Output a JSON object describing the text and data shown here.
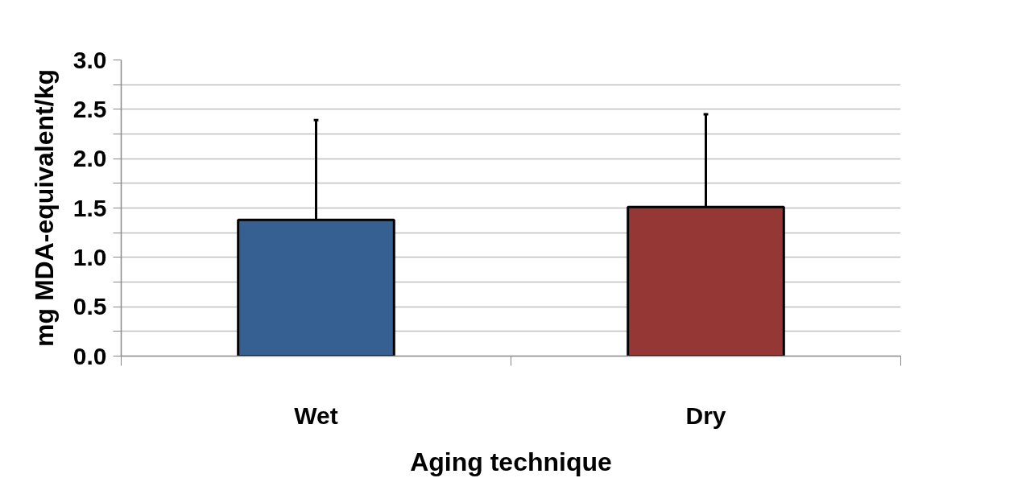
{
  "chart_data": {
    "type": "bar",
    "xlabel": "Aging technique",
    "ylabel": "mg MDA-equivalent/kg",
    "categories": [
      "Wet",
      "Dry"
    ],
    "values": [
      1.38,
      1.51
    ],
    "colors": [
      "#376092",
      "#953735"
    ],
    "errors": [
      [
        1.38,
        2.39
      ],
      [
        1.51,
        2.45
      ]
    ],
    "ylim": [
      0,
      3.0
    ],
    "yticks": [
      {
        "value": 0,
        "label": "0.0"
      },
      {
        "value": 0.25,
        "label": null
      },
      {
        "value": 0.5,
        "label": "0.5"
      },
      {
        "value": 0.75,
        "label": null
      },
      {
        "value": 1,
        "label": "1.0"
      },
      {
        "value": 1.25,
        "label": null
      },
      {
        "value": 1.5,
        "label": "1.5"
      },
      {
        "value": 1.75,
        "label": null
      },
      {
        "value": 2,
        "label": "2.0"
      },
      {
        "value": 2.25,
        "label": null
      },
      {
        "value": 2.5,
        "label": "2.5"
      },
      {
        "value": 2.75,
        "label": null
      },
      {
        "value": 3,
        "label": "3.0"
      }
    ],
    "grid": "y"
  }
}
